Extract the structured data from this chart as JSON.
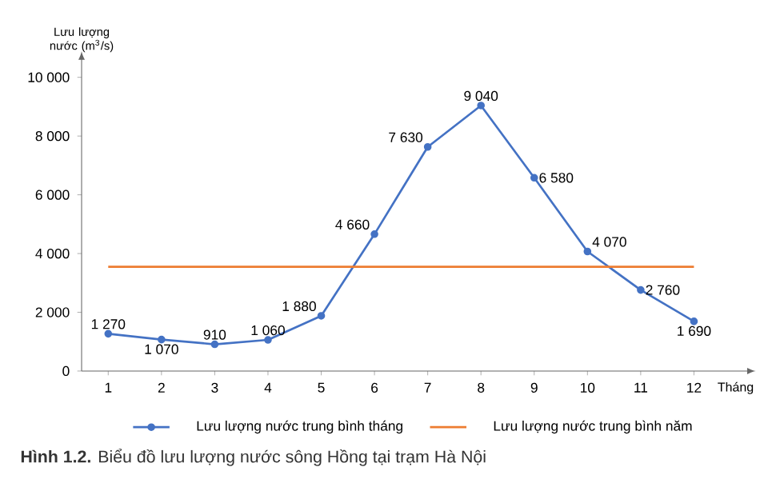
{
  "chart_data": {
    "type": "line",
    "ylabel": "Lưu lượng nước (m$^{3}$/s)",
    "xlabel": "Tháng",
    "categories": [
      "1",
      "2",
      "3",
      "4",
      "5",
      "6",
      "7",
      "8",
      "9",
      "10",
      "11",
      "12"
    ],
    "series": [
      {
        "name": "Lưu lượng nước trung bình tháng",
        "color": "#4472c4",
        "marker": "circle",
        "values": [
          1270,
          1070,
          910,
          1060,
          1880,
          4660,
          7630,
          9040,
          6580,
          4070,
          2760,
          1690
        ],
        "value_labels": [
          "1 270",
          "1 070",
          "910",
          "1 060",
          "1 880",
          "4 660",
          "7 630",
          "9 040",
          "6 580",
          "4 070",
          "2 760",
          "1 690"
        ]
      },
      {
        "name": "Lưu lượng nước trung bình năm",
        "color": "#ed7d31",
        "marker": "none",
        "values": [
          3550,
          3550,
          3550,
          3550,
          3550,
          3550,
          3550,
          3550,
          3550,
          3550,
          3550,
          3550
        ]
      }
    ],
    "ylim": [
      0,
      10600
    ],
    "yticks": [
      0,
      {
        "value": 2000,
        "label": "2 000"
      },
      {
        "value": 4000,
        "label": "4 000"
      },
      {
        "value": 6000,
        "label": "6 000"
      },
      {
        "value": 8000,
        "label": "8 000"
      },
      {
        "value": 10000,
        "label": "10 000"
      }
    ],
    "grid": false,
    "legend": "bottom",
    "annotations": [
      "**Hình 1.2.** Biểu đồ lưu lượng nước sông Hồng tại trạm Hà Nội"
    ]
  }
}
